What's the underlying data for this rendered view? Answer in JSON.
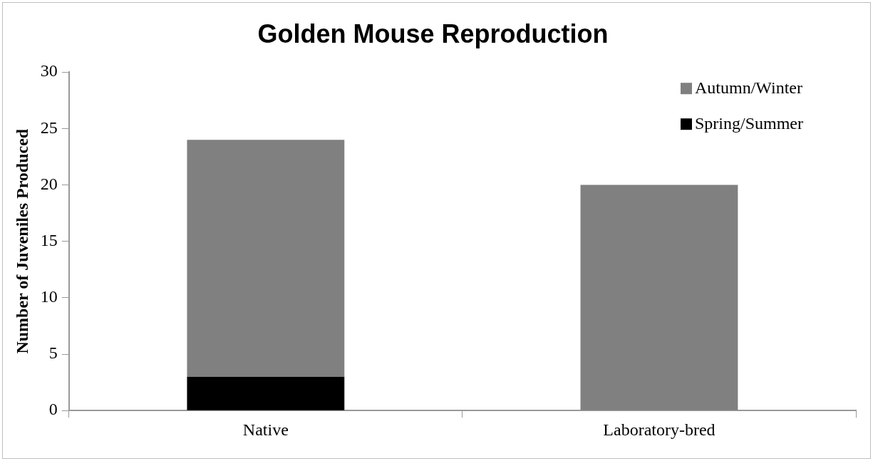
{
  "chart_data": {
    "type": "bar",
    "title": "Golden Mouse Reproduction",
    "ylabel": "Number of Juveniles Produced",
    "categories": [
      "Native",
      "Laboratory-bred"
    ],
    "stacked": true,
    "series": [
      {
        "name": "Spring/Summer",
        "color": "#000000",
        "values": [
          3,
          0
        ]
      },
      {
        "name": "Autumn/Winter",
        "color": "#808080",
        "values": [
          21,
          20
        ]
      }
    ],
    "ylim": [
      0,
      30
    ],
    "yticks": [
      0,
      5,
      10,
      15,
      20,
      25,
      30
    ],
    "grid": false,
    "legend": "top right"
  }
}
